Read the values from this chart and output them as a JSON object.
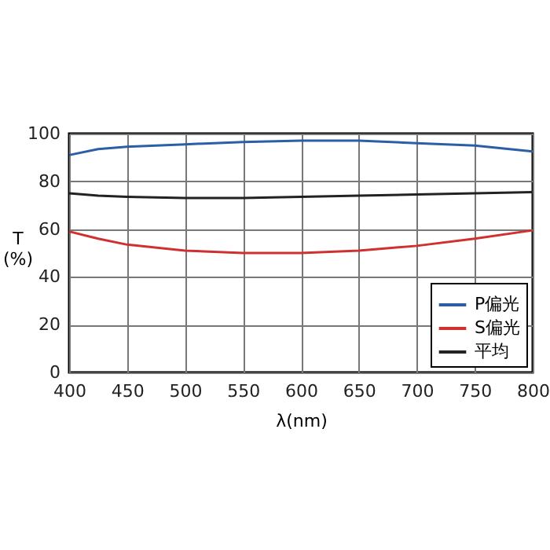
{
  "chart_data": {
    "type": "line",
    "xlabel": "λ(nm)",
    "ylabel": "T\n(%)",
    "x": [
      400,
      425,
      450,
      500,
      550,
      600,
      650,
      700,
      750,
      800
    ],
    "series": [
      {
        "name": "P偏光",
        "color": "#2a5fa8",
        "values": [
          91,
          93.5,
          94.5,
          95.5,
          96.5,
          97,
          97,
          96,
          95,
          92.5
        ]
      },
      {
        "name": "S偏光",
        "color": "#d03030",
        "values": [
          59,
          56,
          53.5,
          51,
          50,
          50,
          51,
          53,
          56,
          59.5
        ]
      },
      {
        "name": "平均",
        "color": "#222222",
        "values": [
          75,
          74,
          73.5,
          73,
          73,
          73.5,
          74,
          74.5,
          75,
          75.5
        ]
      }
    ],
    "xlim": [
      400,
      800
    ],
    "xticks": [
      400,
      450,
      500,
      550,
      600,
      650,
      700,
      750,
      800
    ],
    "ylim": [
      0,
      100
    ],
    "yticks": [
      0,
      20,
      40,
      60,
      80,
      100
    ],
    "grid": true,
    "legend": "bottom right",
    "marker": "none",
    "line_style": "solid"
  }
}
